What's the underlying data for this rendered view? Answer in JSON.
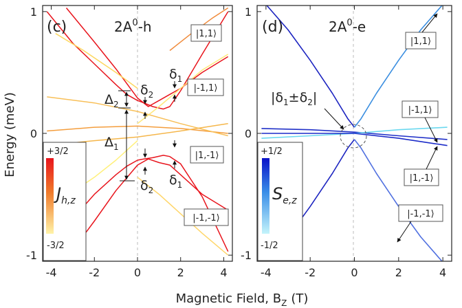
{
  "figure": {
    "xlabel": "Magnetic Field, B",
    "xlabel_sub": "Z",
    "xlabel_unit": "(T)",
    "ylabel": "Energy  (meV)"
  },
  "chart_data": [
    {
      "type": "line",
      "panel_label": "(c)",
      "title": "2A",
      "title_sup": "0",
      "title_suffix": "-h",
      "xlim": [
        -4.4,
        4.4
      ],
      "ylim": [
        -1.05,
        1.05
      ],
      "xticks": [
        -4,
        -2,
        0,
        2,
        4
      ],
      "yticks": [
        -1,
        0,
        1
      ],
      "grid": false,
      "colorbar": {
        "label": "J",
        "label_sub": "h,z",
        "max_label": "+3/2",
        "min_label": "-3/2",
        "color_top": "#e8141c",
        "color_bottom": "#fff3a8"
      },
      "state_labels": [
        "|1,1⟩",
        "|-1,1⟩",
        "|1,-1⟩",
        "|-1,-1⟩"
      ],
      "annotations": {
        "delta2_label": "Δ",
        "delta2_sub": "2",
        "delta1_label": "Δ",
        "delta1_sub": "1",
        "small_delta2": "δ",
        "small_delta2_sub": "2",
        "small_delta1": "δ",
        "small_delta1_sub": "1"
      },
      "series": [
        {
          "color": "#e8141c",
          "x": [
            -4.2,
            -3,
            -2,
            -1,
            -0.5,
            0,
            0.3,
            0.7,
            1.2,
            1.5,
            2,
            3,
            4.2
          ],
          "y": [
            1.0,
            0.74,
            0.57,
            0.4,
            0.32,
            0.27,
            0.25,
            0.22,
            0.2,
            0.22,
            0.35,
            0.65,
            1.0
          ]
        },
        {
          "color": "#e8141c",
          "x": [
            -4.2,
            -3,
            -2,
            -1,
            -0.5,
            0,
            0.3,
            0.7,
            1.2,
            1.5,
            2,
            3,
            4.2
          ],
          "y": [
            -0.95,
            -0.7,
            -0.5,
            -0.34,
            -0.27,
            -0.22,
            -0.21,
            -0.2,
            -0.18,
            -0.19,
            -0.25,
            -0.52,
            -0.97
          ]
        },
        {
          "color": "#e8141c",
          "x": [
            -3.3,
            -2,
            -1,
            0,
            0.5,
            1,
            1.5,
            2,
            3,
            4.2
          ],
          "y": [
            1.03,
            0.75,
            0.53,
            0.29,
            0.22,
            0.27,
            0.32,
            0.37,
            0.5,
            0.63
          ]
        },
        {
          "color": "#e8141c",
          "x": [
            -3.3,
            -2,
            -1,
            0,
            0.5,
            1,
            1.5,
            2,
            3,
            4.2
          ],
          "y": [
            -1.03,
            -0.72,
            -0.47,
            -0.26,
            -0.21,
            -0.24,
            -0.26,
            -0.34,
            -0.5,
            -0.63
          ]
        },
        {
          "color": "#f49d3c",
          "x": [
            -4.2,
            -2,
            0,
            2,
            4.2
          ],
          "y": [
            0.02,
            0.05,
            0.06,
            0.04,
            0.0
          ]
        },
        {
          "color": "#f8bf57",
          "x": [
            -4.2,
            -2,
            0,
            2,
            4.2
          ],
          "y": [
            0.3,
            0.25,
            0.18,
            0.08,
            -0.02
          ]
        },
        {
          "color": "#f5b64a",
          "x": [
            -4.2,
            -2,
            0,
            2,
            4.2
          ],
          "y": [
            -0.1,
            -0.06,
            -0.03,
            0.02,
            0.08
          ]
        },
        {
          "color": "#fff07a",
          "x": [
            -4.2,
            -3,
            -2,
            -1,
            0
          ],
          "y": [
            -0.63,
            -0.48,
            -0.36,
            -0.22,
            -0.06
          ]
        },
        {
          "color": "#ffe87a",
          "x": [
            0,
            1,
            2,
            3,
            4.2
          ],
          "y": [
            0.08,
            0.22,
            0.37,
            0.52,
            0.65
          ]
        },
        {
          "color": "#fdd860",
          "x": [
            -3.8,
            -2.5,
            -1,
            0
          ],
          "y": [
            0.82,
            0.68,
            0.5,
            0.37
          ]
        },
        {
          "color": "#ffd66a",
          "x": [
            0,
            1,
            2,
            3,
            4.2
          ],
          "y": [
            -0.36,
            -0.5,
            -0.66,
            -0.82,
            -1.0
          ]
        },
        {
          "color": "#f08a3a",
          "x": [
            1.5,
            2.5,
            3.5,
            4.2
          ],
          "y": [
            0.68,
            0.82,
            0.95,
            1.03
          ]
        }
      ]
    },
    {
      "type": "line",
      "panel_label": "(d)",
      "title": "2A",
      "title_sup": "0",
      "title_suffix": "-e",
      "xlim": [
        -4.4,
        4.4
      ],
      "ylim": [
        -1.05,
        1.05
      ],
      "xticks": [
        -4,
        -2,
        0,
        2,
        4
      ],
      "yticks": [
        -1,
        0,
        1
      ],
      "grid": false,
      "colorbar": {
        "label": "S",
        "label_sub": "e,z",
        "max_label": "+1/2",
        "min_label": "-1/2",
        "color_top": "#0a12c8",
        "color_bottom": "#c4f4fb"
      },
      "state_labels": [
        "|1,1⟩",
        "|-1,1⟩",
        "|1,-1⟩",
        "|-1,-1⟩"
      ],
      "annotations": {
        "gap_label": "|δ",
        "gap_sub1": "1",
        "gap_mid": "±δ",
        "gap_sub2": "2",
        "gap_end": "|"
      },
      "series": [
        {
          "color": "#1c24c0",
          "x": [
            -4.2,
            -3,
            -2,
            -1,
            -0.3,
            0
          ],
          "y": [
            -1.1,
            -0.85,
            -0.6,
            -0.33,
            -0.12,
            -0.05
          ]
        },
        {
          "color": "#5070e0",
          "x": [
            0,
            0.3,
            1,
            2,
            3,
            4.2
          ],
          "y": [
            -0.05,
            -0.12,
            -0.33,
            -0.6,
            -0.85,
            -1.1
          ]
        },
        {
          "color": "#1c24c0",
          "x": [
            -4.2,
            -3,
            -2,
            -1,
            -0.3,
            0
          ],
          "y": [
            1.1,
            0.85,
            0.6,
            0.33,
            0.12,
            0.05
          ]
        },
        {
          "color": "#3a8ee0",
          "x": [
            0,
            0.3,
            1,
            2,
            3,
            4.2
          ],
          "y": [
            0.05,
            0.12,
            0.33,
            0.6,
            0.85,
            1.1
          ]
        },
        {
          "color": "#2030c8",
          "x": [
            -4.2,
            -2,
            0,
            2,
            4.2
          ],
          "y": [
            0.04,
            0.03,
            0.01,
            -0.02,
            -0.05
          ]
        },
        {
          "color": "#6ad8ef",
          "x": [
            -4.2,
            -2,
            0,
            2,
            4.2
          ],
          "y": [
            -0.04,
            -0.02,
            0.0,
            0.03,
            0.05
          ]
        },
        {
          "color": "#1a2ac8",
          "x": [
            -4.2,
            -2,
            0,
            2,
            4.2
          ],
          "y": [
            0.0,
            0.0,
            0.0,
            -0.04,
            -0.1
          ]
        }
      ]
    }
  ]
}
